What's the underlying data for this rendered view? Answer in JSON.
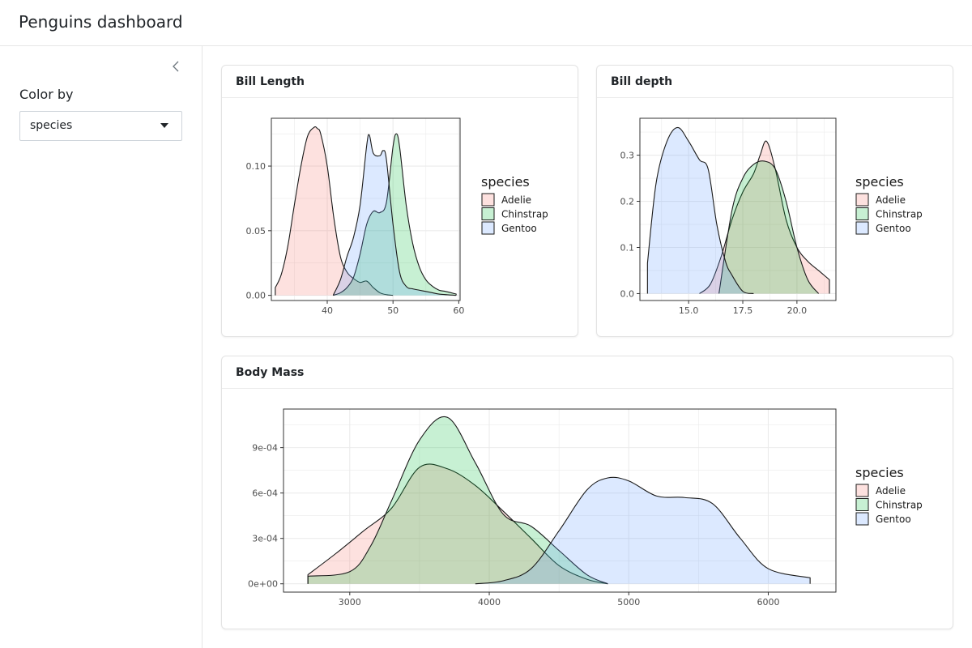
{
  "app": {
    "title": "Penguins dashboard"
  },
  "sidebar": {
    "collapse_icon": "chevron-left-icon",
    "color_label": "Color by",
    "select_value": "species"
  },
  "colors": {
    "Adelie": "#F8766D",
    "Chinstrap": "#00BA38",
    "Gentoo": "#619CFF",
    "grid": "#ebebeb",
    "panel_border": "#333333"
  },
  "cards": [
    {
      "title": "Bill Length",
      "chart_data": {
        "type": "area",
        "xlabel": "",
        "ylabel": "",
        "xlim": [
          31.5,
          60.2
        ],
        "ylim": [
          -0.004,
          0.137
        ],
        "x_ticks": [
          40,
          50,
          60
        ],
        "x_tick_labels": [
          "40",
          "50",
          "60"
        ],
        "y_ticks": [
          0,
          0.05,
          0.1
        ],
        "y_tick_labels": [
          "0.00",
          "0.05",
          "0.10"
        ],
        "legend": {
          "title": "species",
          "position": "right",
          "entries": [
            "Adelie",
            "Chinstrap",
            "Gentoo"
          ]
        },
        "grid": true,
        "series": [
          {
            "name": "Adelie",
            "x": [
              32.1,
              33,
              34,
              35,
              36,
              37,
              38,
              38.5,
              39,
              40,
              41,
              42,
              43,
              44,
              45,
              46,
              47,
              48,
              49,
              50
            ],
            "values": [
              0.006,
              0.016,
              0.038,
              0.07,
              0.1,
              0.123,
              0.13,
              0.129,
              0.125,
              0.1,
              0.06,
              0.03,
              0.018,
              0.013,
              0.01,
              0.011,
              0.006,
              0.002,
              0.0005,
              0
            ]
          },
          {
            "name": "Chinstrap",
            "x": [
              40.9,
              42,
              43,
              44,
              45,
              46,
              47,
              48,
              49,
              50,
              50.5,
              51,
              52,
              53,
              54,
              55,
              56,
              57,
              58,
              59.6
            ],
            "values": [
              0,
              0.002,
              0.006,
              0.014,
              0.032,
              0.055,
              0.065,
              0.064,
              0.072,
              0.115,
              0.125,
              0.115,
              0.07,
              0.04,
              0.022,
              0.012,
              0.007,
              0.004,
              0.003,
              0.001
            ]
          },
          {
            "name": "Gentoo",
            "x": [
              40.9,
              42,
              43,
              44,
              45,
              46,
              46.4,
              47,
              48,
              48.5,
              49,
              50,
              51,
              52,
              53,
              54,
              55,
              56,
              57,
              59.6
            ],
            "values": [
              0,
              0.012,
              0.03,
              0.045,
              0.07,
              0.116,
              0.124,
              0.11,
              0.108,
              0.112,
              0.105,
              0.055,
              0.018,
              0.007,
              0.005,
              0.004,
              0.003,
              0.002,
              0.001,
              0
            ]
          }
        ]
      }
    },
    {
      "title": "Bill depth",
      "chart_data": {
        "type": "area",
        "xlabel": "",
        "ylabel": "",
        "xlim": [
          12.75,
          21.8
        ],
        "ylim": [
          -0.015,
          0.38
        ],
        "x_ticks": [
          15,
          17.5,
          20
        ],
        "x_tick_labels": [
          "15.0",
          "17.5",
          "20.0"
        ],
        "y_ticks": [
          0,
          0.1,
          0.2,
          0.3
        ],
        "y_tick_labels": [
          "0.0",
          "0.1",
          "0.2",
          "0.3"
        ],
        "legend": {
          "title": "species",
          "position": "right",
          "entries": [
            "Adelie",
            "Chinstrap",
            "Gentoo"
          ]
        },
        "grid": true,
        "series": [
          {
            "name": "Adelie",
            "x": [
              15.5,
              16,
              16.5,
              17,
              17.5,
              18,
              18.3,
              18.6,
              19,
              19.5,
              20,
              20.5,
              21,
              21.5
            ],
            "values": [
              0,
              0.02,
              0.08,
              0.16,
              0.22,
              0.26,
              0.3,
              0.33,
              0.27,
              0.16,
              0.1,
              0.07,
              0.05,
              0.03
            ]
          },
          {
            "name": "Chinstrap",
            "x": [
              16.4,
              17,
              17.5,
              18,
              18.5,
              19,
              19.5,
              20,
              20.5,
              21
            ],
            "values": [
              0,
              0.18,
              0.25,
              0.28,
              0.287,
              0.27,
              0.2,
              0.1,
              0.03,
              0
            ]
          },
          {
            "name": "Gentoo",
            "x": [
              13.1,
              13.5,
              14,
              14.5,
              15,
              15.5,
              15.9,
              16.3,
              16.7,
              17,
              17.5,
              18
            ],
            "values": [
              0.066,
              0.24,
              0.33,
              0.36,
              0.33,
              0.29,
              0.27,
              0.15,
              0.07,
              0.04,
              0.005,
              0
            ]
          }
        ]
      }
    },
    {
      "title": "Body Mass",
      "chart_data": {
        "type": "area",
        "xlabel": "",
        "ylabel": "",
        "xlim": [
          2525,
          6485
        ],
        "ylim": [
          -5.5e-05,
          0.001155
        ],
        "x_ticks": [
          3000,
          4000,
          5000,
          6000
        ],
        "x_tick_labels": [
          "3000",
          "4000",
          "5000",
          "6000"
        ],
        "y_ticks": [
          0,
          0.0003,
          0.0006,
          0.0009
        ],
        "y_tick_labels": [
          "0e+00",
          "3e-04",
          "6e-04",
          "9e-04"
        ],
        "legend": {
          "title": "species",
          "position": "right",
          "entries": [
            "Adelie",
            "Chinstrap",
            "Gentoo"
          ]
        },
        "grid": true,
        "series": [
          {
            "name": "Adelie",
            "x": [
              2700,
              2900,
              3100,
              3300,
              3500,
              3700,
              3900,
              4100,
              4300,
              4500,
              4700,
              4850
            ],
            "values": [
              6e-05,
              0.0002,
              0.00035,
              0.0005,
              0.00077,
              0.00076,
              0.00065,
              0.00048,
              0.0003,
              0.00012,
              3e-05,
              0
            ]
          },
          {
            "name": "Chinstrap",
            "x": [
              2700,
              3000,
              3150,
              3300,
              3500,
              3700,
              3900,
              4100,
              4300,
              4500,
              4700,
              4850
            ],
            "values": [
              5e-05,
              8e-05,
              0.00025,
              0.00055,
              0.00095,
              0.0011,
              0.0008,
              0.00046,
              0.00038,
              0.00022,
              6e-05,
              0
            ]
          },
          {
            "name": "Gentoo",
            "x": [
              3900,
              4100,
              4300,
              4500,
              4700,
              4850,
              5000,
              5200,
              5400,
              5600,
              5800,
              6000,
              6300
            ],
            "values": [
              0,
              2e-05,
              0.0001,
              0.00035,
              0.00062,
              0.0007,
              0.00068,
              0.00058,
              0.00057,
              0.00053,
              0.0003,
              0.0001,
              4e-05
            ]
          }
        ]
      }
    }
  ]
}
